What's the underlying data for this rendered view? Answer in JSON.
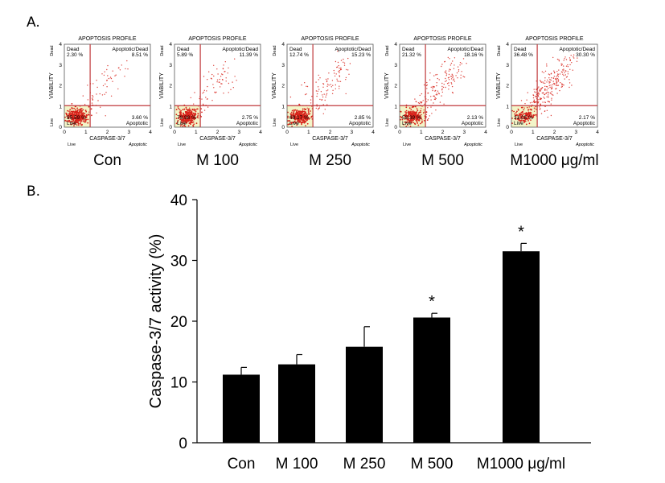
{
  "panel_a": {
    "label": "A.",
    "plots": [
      {
        "title": "APOPTOSIS PROFILE",
        "caption": "Con",
        "q_dead": "Dead",
        "q_dead_val": "2.30 %",
        "q_apd": "Apoptotic/Dead",
        "q_apd_val": "8.51 %",
        "q_live_val": "85.59 %",
        "q_apop_val": "3.60 %"
      },
      {
        "title": "APOPTOSIS PROFILE",
        "caption": "M 100",
        "q_dead": "Dead",
        "q_dead_val": "5.89 %",
        "q_apd": "Apoptotic/Dead",
        "q_apd_val": "11.39 %",
        "q_live_val": "79.98 %",
        "q_apop_val": "2.75 %"
      },
      {
        "title": "APOPTOSIS PROFILE",
        "caption": "M 250",
        "q_dead": "Dead",
        "q_dead_val": "12.74 %",
        "q_apd": "Apoptotic/Dead",
        "q_apd_val": "15.23 %",
        "q_live_val": "69.17 %",
        "q_apop_val": "2.85 %"
      },
      {
        "title": "APOPTOSIS PROFILE",
        "caption": "M 500",
        "q_dead": "Dead",
        "q_dead_val": "21.32 %",
        "q_apd": "Apoptotic/Dead",
        "q_apd_val": "18.16 %",
        "q_live_val": "58.39 %",
        "q_apop_val": "2.13 %"
      },
      {
        "title": "APOPTOSIS PROFILE",
        "caption": "M1000 μg/ml",
        "q_dead": "Dead",
        "q_dead_val": "36.48 %",
        "q_apd": "Apoptotic/Dead",
        "q_apd_val": "30.30 %",
        "q_live_val": "31.05 %",
        "q_apop_val": "2.17 %"
      }
    ],
    "y_axis_label": "VIABILITY",
    "y_top_label": "Dead",
    "y_bottom_label": "Live",
    "x_axis_label": "CASPASE-3/7",
    "x_left_label": "Live",
    "x_right_label": "Apoptotic",
    "q_live": "Live",
    "q_apop": "Apoptotic",
    "ticks": [
      "0",
      "1",
      "2",
      "3",
      "4"
    ],
    "dot_color": "#d8231b",
    "gate_color": "#c0393b",
    "live_fill": "#f3f5c8"
  },
  "panel_b": {
    "label": "B.",
    "chart_data": {
      "type": "bar",
      "categories": [
        "Con",
        "M 100",
        "M 250",
        "M 500",
        "M1000 μg/ml"
      ],
      "values": [
        11.2,
        12.9,
        15.8,
        20.6,
        31.5
      ],
      "errors": [
        1.2,
        1.6,
        3.3,
        0.7,
        1.3
      ],
      "significance": [
        "",
        "",
        "",
        "*",
        "*"
      ],
      "ylabel": "Caspase-3/7 activity (%)",
      "xlabel": "",
      "ylim": [
        0,
        40
      ],
      "yticks": [
        0,
        10,
        20,
        30,
        40
      ],
      "bar_color": "#000000",
      "grid": false
    }
  }
}
